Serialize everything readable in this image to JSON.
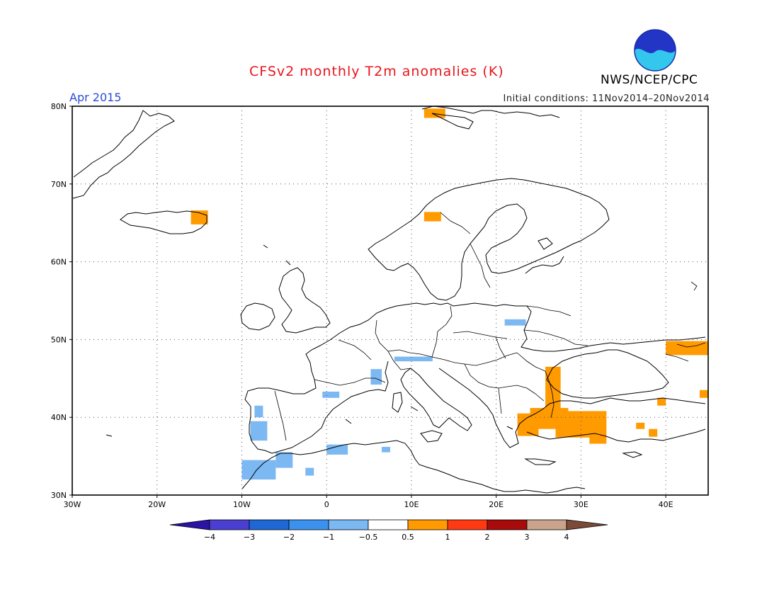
{
  "title": "CFSv2 monthly T2m anomalies (K)",
  "period": "Apr 2015",
  "initial_conditions": "Initial conditions: 11Nov2014–20Nov2014",
  "agency": "NWS/NCEP/CPC",
  "logo_text": "NOAA",
  "map": {
    "lon_range": [
      -30,
      45
    ],
    "lat_range": [
      30,
      80
    ],
    "lat_ticks": [
      {
        "value": 80,
        "label": "80N"
      },
      {
        "value": 70,
        "label": "70N"
      },
      {
        "value": 60,
        "label": "60N"
      },
      {
        "value": 50,
        "label": "50N"
      },
      {
        "value": 40,
        "label": "40N"
      },
      {
        "value": 30,
        "label": "30N"
      }
    ],
    "lon_ticks": [
      {
        "value": -30,
        "label": "30W"
      },
      {
        "value": -20,
        "label": "20W"
      },
      {
        "value": -10,
        "label": "10W"
      },
      {
        "value": 0,
        "label": "0"
      },
      {
        "value": 10,
        "label": "10E"
      },
      {
        "value": 20,
        "label": "20E"
      },
      {
        "value": 30,
        "label": "30E"
      },
      {
        "value": 40,
        "label": "40E"
      }
    ],
    "grid": true,
    "anomaly_regions": [
      {
        "class": "warm",
        "lon": [
          -16,
          -14
        ],
        "lat": [
          64.8,
          66.6
        ]
      },
      {
        "class": "warm",
        "lon": [
          11.5,
          14
        ],
        "lat": [
          78.5,
          79.7
        ]
      },
      {
        "class": "warm",
        "lon": [
          11.5,
          13.5
        ],
        "lat": [
          65.2,
          66.4
        ]
      },
      {
        "class": "warm",
        "lon": [
          40,
          45
        ],
        "lat": [
          48,
          49.8
        ]
      },
      {
        "class": "warm",
        "lon": [
          25.8,
          27.6
        ],
        "lat": [
          39,
          46.5
        ]
      },
      {
        "class": "warm",
        "lon": [
          22.5,
          25
        ],
        "lat": [
          37.6,
          40.5
        ]
      },
      {
        "class": "warm",
        "lon": [
          24,
          28.5
        ],
        "lat": [
          38.5,
          41.2
        ]
      },
      {
        "class": "warm",
        "lon": [
          27,
          33
        ],
        "lat": [
          37.4,
          40.8
        ]
      },
      {
        "class": "warm",
        "lon": [
          31,
          33
        ],
        "lat": [
          36.6,
          37.6
        ]
      },
      {
        "class": "warm",
        "lon": [
          38,
          39
        ],
        "lat": [
          37.5,
          38.5
        ]
      },
      {
        "class": "warm",
        "lon": [
          39,
          40
        ],
        "lat": [
          41.5,
          42.5
        ]
      },
      {
        "class": "warm",
        "lon": [
          44,
          45
        ],
        "lat": [
          42.5,
          43.5
        ]
      },
      {
        "class": "warm",
        "lon": [
          36.5,
          37.5
        ],
        "lat": [
          38.5,
          39.3
        ]
      },
      {
        "class": "cool",
        "lon": [
          -8.5,
          -7.5
        ],
        "lat": [
          40,
          41.5
        ]
      },
      {
        "class": "cool",
        "lon": [
          -9,
          -7
        ],
        "lat": [
          37,
          39.5
        ]
      },
      {
        "class": "cool",
        "lon": [
          -10,
          -6
        ],
        "lat": [
          32,
          34.5
        ]
      },
      {
        "class": "cool",
        "lon": [
          -6,
          -4
        ],
        "lat": [
          33.5,
          35.5
        ]
      },
      {
        "class": "cool",
        "lon": [
          -2.5,
          -1.5
        ],
        "lat": [
          32.5,
          33.5
        ]
      },
      {
        "class": "cool",
        "lon": [
          0,
          2.5
        ],
        "lat": [
          35.2,
          36.5
        ]
      },
      {
        "class": "cool",
        "lon": [
          -0.5,
          1.5
        ],
        "lat": [
          42.5,
          43.3
        ]
      },
      {
        "class": "cool",
        "lon": [
          5.2,
          6.5
        ],
        "lat": [
          44.2,
          46.2
        ]
      },
      {
        "class": "cool",
        "lon": [
          8,
          12.5
        ],
        "lat": [
          47.2,
          47.8
        ]
      },
      {
        "class": "cool",
        "lon": [
          21,
          23.5
        ],
        "lat": [
          51.8,
          52.6
        ]
      },
      {
        "class": "cool",
        "lon": [
          6.5,
          7.5
        ],
        "lat": [
          35.5,
          36.2
        ]
      }
    ]
  },
  "colorbar": {
    "boundary_labels": [
      "-4",
      "-3",
      "-2",
      "-1",
      "-0.5",
      "0.5",
      "1",
      "2",
      "3",
      "4"
    ],
    "colors": {
      "lt_-4": "#2a13a5",
      "-4_-3": "#4a3fd0",
      "-3_-2": "#1e67d5",
      "-2_-1": "#3b92ee",
      "-1_-0.5": "#7cb8f2",
      "-0.5_0.5": "#ffffff",
      "0.5_1": "#ff9a00",
      "1_2": "#ff3a12",
      "2_3": "#a80b0b",
      "3_4": "#c9a38c",
      "gt_4": "#7c4a38"
    },
    "swatch_order": [
      "-4_-3",
      "-3_-2",
      "-2_-1",
      "-1_-0.5",
      "-0.5_0.5",
      "0.5_1",
      "1_2",
      "2_3",
      "3_4"
    ],
    "warm_color": "#ff9a00",
    "cool_color": "#7cb8f2"
  }
}
